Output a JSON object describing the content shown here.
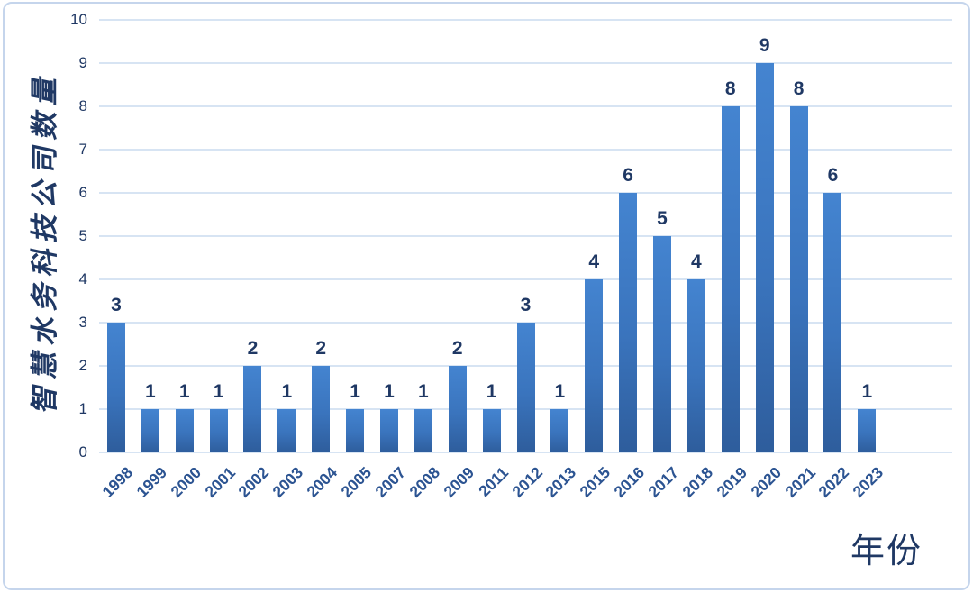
{
  "chart_data": {
    "type": "bar",
    "title": "",
    "xlabel": "年份",
    "ylabel": "智慧水务科技公司数量",
    "categories": [
      "1998",
      "1999",
      "2000",
      "2001",
      "2002",
      "2003",
      "2004",
      "2005",
      "2007",
      "2008",
      "2009",
      "2011",
      "2012",
      "2013",
      "2015",
      "2016",
      "2017",
      "2018",
      "2019",
      "2020",
      "2021",
      "2022",
      "2023"
    ],
    "values": [
      3,
      1,
      1,
      1,
      2,
      1,
      2,
      1,
      1,
      1,
      2,
      1,
      3,
      1,
      4,
      6,
      5,
      4,
      8,
      9,
      8,
      6,
      1
    ],
    "data_labels": [
      3,
      1,
      1,
      1,
      2,
      1,
      2,
      1,
      1,
      1,
      2,
      1,
      3,
      1,
      4,
      6,
      5,
      4,
      8,
      9,
      8,
      6,
      1
    ],
    "ylim": [
      0,
      10
    ],
    "yticks": [
      0,
      1,
      2,
      3,
      4,
      5,
      6,
      7,
      8,
      9,
      10
    ],
    "grid": "horizontal",
    "legend": "none",
    "trailing_empty_slots": 2,
    "colors": {
      "bar_top": "#4484d0",
      "bar_bottom": "#2e5d9c",
      "text_navy": "#1f3864",
      "xtick_text": "#2c5492",
      "gridline": "#d7e4f3",
      "frame_border": "#c5d5ec",
      "background": "#ffffff"
    }
  }
}
